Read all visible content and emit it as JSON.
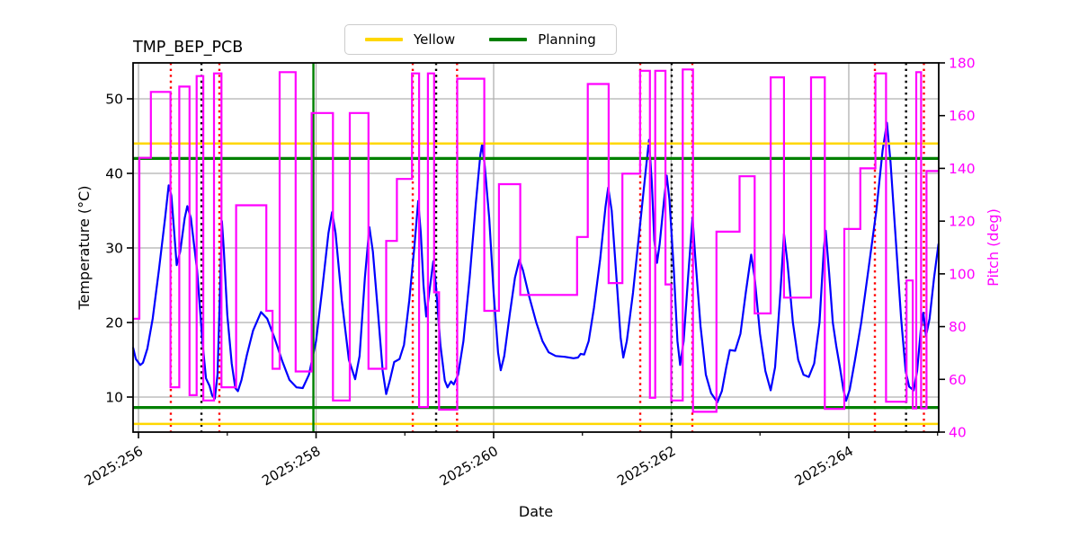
{
  "figure": {
    "title": "TMP_BEP_PCB",
    "xlabel": "Date",
    "ylabel_left": "Temperature (°C)",
    "ylabel_right": "Pitch (deg)"
  },
  "legend": [
    {
      "label": "Yellow",
      "color": "#ffd700"
    },
    {
      "label": "Planning",
      "color": "#008000"
    }
  ],
  "colors": {
    "temperature_line": "#0000ff",
    "pitch_line": "#ff00ff",
    "yellow_limit": "#ffd700",
    "planning_limit": "#008000",
    "red_marker": "#ff0000",
    "black_marker": "#000000",
    "grid": "#b0b0b0",
    "spine": "#000000",
    "right_axis_text": "#ff00ff"
  },
  "chart_data": {
    "type": "line",
    "title": "TMP_BEP_PCB",
    "xlabel": "Date",
    "x_axis": {
      "range": [
        255.939,
        265.013
      ],
      "ticks": [
        256,
        258,
        260,
        262,
        264
      ],
      "tick_labels": [
        "2025:256",
        "2025:258",
        "2025:260",
        "2025:262",
        "2025:264"
      ],
      "minor_ticks": [
        257,
        259,
        261,
        263,
        265
      ]
    },
    "y_left": {
      "label": "Temperature (°C)",
      "range": [
        5.3,
        54.82
      ],
      "ticks": [
        10,
        20,
        30,
        40,
        50
      ],
      "grid": true
    },
    "y_right": {
      "label": "Pitch (deg)",
      "range": [
        40,
        180
      ],
      "ticks": [
        40,
        60,
        80,
        100,
        120,
        140,
        160,
        180
      ]
    },
    "hlines": [
      {
        "y": 44.0,
        "color": "#ffd700",
        "width": 2.5,
        "name": "yellow-high"
      },
      {
        "y": 6.4,
        "color": "#ffd700",
        "width": 2.5,
        "name": "yellow-low"
      },
      {
        "y": 42.0,
        "color": "#008000",
        "width": 3.2,
        "name": "planning-high"
      },
      {
        "y": 8.6,
        "color": "#008000",
        "width": 3.2,
        "name": "planning-low"
      }
    ],
    "vlines": [
      {
        "x": 257.97,
        "color": "#008000",
        "style": "solid",
        "width": 2.4
      },
      {
        "x": 256.364,
        "color": "#ff0000",
        "style": "dotted",
        "width": 2.4
      },
      {
        "x": 256.911,
        "color": "#ff0000",
        "style": "dotted",
        "width": 2.4
      },
      {
        "x": 259.089,
        "color": "#ff0000",
        "style": "dotted",
        "width": 2.4
      },
      {
        "x": 259.588,
        "color": "#ff0000",
        "style": "dotted",
        "width": 2.4
      },
      {
        "x": 261.651,
        "color": "#ff0000",
        "style": "dotted",
        "width": 2.4
      },
      {
        "x": 262.238,
        "color": "#ff0000",
        "style": "dotted",
        "width": 2.4
      },
      {
        "x": 264.294,
        "color": "#ff0000",
        "style": "dotted",
        "width": 2.4
      },
      {
        "x": 264.846,
        "color": "#ff0000",
        "style": "dotted",
        "width": 2.4
      },
      {
        "x": 256.709,
        "color": "#000000",
        "style": "dotted",
        "width": 2.4
      },
      {
        "x": 259.352,
        "color": "#000000",
        "style": "dotted",
        "width": 2.4
      },
      {
        "x": 262.005,
        "color": "#000000",
        "style": "dotted",
        "width": 2.4
      },
      {
        "x": 264.645,
        "color": "#000000",
        "style": "dotted",
        "width": 2.4
      }
    ],
    "series": [
      {
        "name": "temperature",
        "axis": "left",
        "color": "#0000ff",
        "width": 2.2,
        "style": "line",
        "points": [
          [
            255.94,
            16.6
          ],
          [
            255.97,
            15.1
          ],
          [
            256.02,
            14.3
          ],
          [
            256.05,
            14.6
          ],
          [
            256.1,
            16.5
          ],
          [
            256.16,
            20.5
          ],
          [
            256.23,
            27.0
          ],
          [
            256.3,
            34.0
          ],
          [
            256.34,
            38.4
          ],
          [
            256.37,
            37.0
          ],
          [
            256.4,
            32.5
          ],
          [
            256.43,
            27.7
          ],
          [
            256.47,
            29.5
          ],
          [
            256.52,
            34.0
          ],
          [
            256.55,
            35.6
          ],
          [
            256.59,
            34.0
          ],
          [
            256.66,
            27.0
          ],
          [
            256.72,
            17.5
          ],
          [
            256.76,
            12.5
          ],
          [
            256.8,
            11.5
          ],
          [
            256.83,
            10.2
          ],
          [
            256.86,
            9.8
          ],
          [
            256.89,
            13.0
          ],
          [
            256.92,
            25.0
          ],
          [
            256.94,
            33.6
          ],
          [
            256.96,
            30.0
          ],
          [
            257.0,
            21.0
          ],
          [
            257.05,
            14.5
          ],
          [
            257.09,
            11.2
          ],
          [
            257.12,
            10.8
          ],
          [
            257.16,
            12.3
          ],
          [
            257.22,
            15.6
          ],
          [
            257.29,
            18.9
          ],
          [
            257.38,
            21.4
          ],
          [
            257.45,
            20.5
          ],
          [
            257.53,
            18.0
          ],
          [
            257.62,
            14.8
          ],
          [
            257.7,
            12.3
          ],
          [
            257.78,
            11.3
          ],
          [
            257.85,
            11.2
          ],
          [
            257.92,
            13.0
          ],
          [
            258.0,
            17.5
          ],
          [
            258.07,
            24.5
          ],
          [
            258.14,
            32.0
          ],
          [
            258.18,
            34.8
          ],
          [
            258.22,
            32.0
          ],
          [
            258.29,
            23.0
          ],
          [
            258.37,
            15.0
          ],
          [
            258.44,
            12.4
          ],
          [
            258.49,
            15.5
          ],
          [
            258.55,
            26.0
          ],
          [
            258.6,
            32.8
          ],
          [
            258.64,
            29.5
          ],
          [
            258.7,
            21.0
          ],
          [
            258.75,
            13.5
          ],
          [
            258.79,
            10.4
          ],
          [
            258.83,
            12.2
          ],
          [
            258.88,
            14.7
          ],
          [
            258.94,
            15.1
          ],
          [
            258.99,
            17.0
          ],
          [
            259.05,
            23.0
          ],
          [
            259.11,
            30.5
          ],
          [
            259.15,
            36.3
          ],
          [
            259.18,
            32.0
          ],
          [
            259.21,
            25.0
          ],
          [
            259.24,
            20.8
          ],
          [
            259.28,
            24.5
          ],
          [
            259.32,
            28.2
          ],
          [
            259.35,
            25.0
          ],
          [
            259.4,
            17.0
          ],
          [
            259.45,
            12.2
          ],
          [
            259.48,
            11.3
          ],
          [
            259.52,
            12.1
          ],
          [
            259.55,
            11.7
          ],
          [
            259.6,
            13.0
          ],
          [
            259.66,
            17.5
          ],
          [
            259.73,
            26.0
          ],
          [
            259.8,
            36.0
          ],
          [
            259.85,
            42.5
          ],
          [
            259.87,
            43.9
          ],
          [
            259.9,
            41.0
          ],
          [
            259.95,
            34.0
          ],
          [
            260.0,
            24.0
          ],
          [
            260.05,
            16.0
          ],
          [
            260.08,
            13.6
          ],
          [
            260.12,
            15.5
          ],
          [
            260.18,
            21.0
          ],
          [
            260.24,
            26.0
          ],
          [
            260.29,
            28.4
          ],
          [
            260.33,
            27.0
          ],
          [
            260.4,
            23.5
          ],
          [
            260.48,
            20.0
          ],
          [
            260.55,
            17.5
          ],
          [
            260.62,
            16.0
          ],
          [
            260.7,
            15.5
          ],
          [
            260.8,
            15.4
          ],
          [
            260.9,
            15.2
          ],
          [
            260.95,
            15.3
          ],
          [
            260.98,
            15.8
          ],
          [
            261.02,
            15.7
          ],
          [
            261.07,
            17.5
          ],
          [
            261.13,
            22.0
          ],
          [
            261.2,
            28.5
          ],
          [
            261.26,
            35.5
          ],
          [
            261.29,
            38.1
          ],
          [
            261.33,
            35.0
          ],
          [
            261.38,
            26.5
          ],
          [
            261.43,
            18.0
          ],
          [
            261.46,
            15.3
          ],
          [
            261.5,
            17.5
          ],
          [
            261.57,
            24.0
          ],
          [
            261.64,
            32.0
          ],
          [
            261.71,
            40.0
          ],
          [
            261.75,
            44.5
          ],
          [
            261.78,
            39.0
          ],
          [
            261.81,
            31.0
          ],
          [
            261.84,
            28.0
          ],
          [
            261.87,
            30.5
          ],
          [
            261.92,
            36.5
          ],
          [
            261.95,
            39.7
          ],
          [
            261.98,
            36.5
          ],
          [
            262.03,
            27.0
          ],
          [
            262.07,
            17.5
          ],
          [
            262.1,
            14.3
          ],
          [
            262.14,
            17.5
          ],
          [
            262.19,
            26.0
          ],
          [
            262.24,
            34.1
          ],
          [
            262.27,
            29.0
          ],
          [
            262.33,
            19.5
          ],
          [
            262.39,
            13.0
          ],
          [
            262.45,
            10.5
          ],
          [
            262.52,
            9.3
          ],
          [
            262.57,
            10.8
          ],
          [
            262.62,
            14.0
          ],
          [
            262.66,
            16.3
          ],
          [
            262.72,
            16.2
          ],
          [
            262.78,
            18.5
          ],
          [
            262.84,
            24.0
          ],
          [
            262.9,
            29.1
          ],
          [
            262.94,
            26.0
          ],
          [
            263.0,
            18.5
          ],
          [
            263.06,
            13.5
          ],
          [
            263.12,
            10.9
          ],
          [
            263.17,
            14.0
          ],
          [
            263.23,
            24.0
          ],
          [
            263.27,
            31.9
          ],
          [
            263.31,
            28.0
          ],
          [
            263.37,
            20.0
          ],
          [
            263.43,
            15.0
          ],
          [
            263.49,
            13.0
          ],
          [
            263.55,
            12.7
          ],
          [
            263.61,
            14.5
          ],
          [
            263.67,
            20.0
          ],
          [
            263.72,
            30.0
          ],
          [
            263.74,
            32.3
          ],
          [
            263.78,
            26.5
          ],
          [
            263.82,
            20.0
          ],
          [
            263.86,
            16.8
          ],
          [
            263.9,
            14.0
          ],
          [
            263.94,
            11.0
          ],
          [
            263.97,
            9.5
          ],
          [
            264.01,
            11.0
          ],
          [
            264.07,
            15.0
          ],
          [
            264.14,
            20.0
          ],
          [
            264.22,
            27.0
          ],
          [
            264.31,
            35.0
          ],
          [
            264.38,
            43.0
          ],
          [
            264.43,
            46.8
          ],
          [
            264.47,
            41.5
          ],
          [
            264.53,
            31.0
          ],
          [
            264.59,
            20.5
          ],
          [
            264.64,
            13.5
          ],
          [
            264.68,
            11.4
          ],
          [
            264.73,
            10.9
          ],
          [
            264.77,
            13.5
          ],
          [
            264.81,
            19.0
          ],
          [
            264.84,
            21.3
          ],
          [
            264.87,
            18.2
          ],
          [
            264.91,
            20.5
          ],
          [
            264.96,
            26.0
          ],
          [
            265.01,
            30.5
          ]
        ]
      },
      {
        "name": "pitch",
        "axis": "right",
        "color": "#ff00ff",
        "width": 2.2,
        "style": "step",
        "points": [
          [
            255.939,
            83
          ],
          [
            256.01,
            144
          ],
          [
            256.14,
            169
          ],
          [
            256.36,
            57
          ],
          [
            256.46,
            171
          ],
          [
            256.575,
            54
          ],
          [
            256.655,
            175
          ],
          [
            256.73,
            52
          ],
          [
            256.85,
            176
          ],
          [
            256.935,
            57
          ],
          [
            257.1,
            126
          ],
          [
            257.44,
            86
          ],
          [
            257.51,
            64
          ],
          [
            257.59,
            176.5
          ],
          [
            257.77,
            63
          ],
          [
            257.95,
            161
          ],
          [
            258.19,
            52
          ],
          [
            258.38,
            161
          ],
          [
            258.59,
            64
          ],
          [
            258.79,
            112.5
          ],
          [
            258.91,
            136
          ],
          [
            259.08,
            176
          ],
          [
            259.16,
            49.5
          ],
          [
            259.26,
            176
          ],
          [
            259.33,
            93
          ],
          [
            259.385,
            48.5
          ],
          [
            259.59,
            174
          ],
          [
            259.895,
            86
          ],
          [
            260.06,
            134
          ],
          [
            260.3,
            92
          ],
          [
            260.94,
            114
          ],
          [
            261.06,
            172
          ],
          [
            261.295,
            96.5
          ],
          [
            261.45,
            138
          ],
          [
            261.65,
            177
          ],
          [
            261.76,
            53
          ],
          [
            261.82,
            177
          ],
          [
            261.935,
            96
          ],
          [
            262.0,
            52
          ],
          [
            262.13,
            177.5
          ],
          [
            262.245,
            47.7
          ],
          [
            262.51,
            116
          ],
          [
            262.77,
            137
          ],
          [
            262.94,
            85
          ],
          [
            263.12,
            174.5
          ],
          [
            263.27,
            91
          ],
          [
            263.575,
            174.5
          ],
          [
            263.73,
            48.8
          ],
          [
            263.95,
            117
          ],
          [
            264.13,
            140
          ],
          [
            264.3,
            176
          ],
          [
            264.42,
            51.5
          ],
          [
            264.65,
            97.5
          ],
          [
            264.72,
            49
          ],
          [
            264.76,
            176.5
          ],
          [
            264.815,
            49
          ],
          [
            264.875,
            139
          ]
        ]
      }
    ]
  }
}
